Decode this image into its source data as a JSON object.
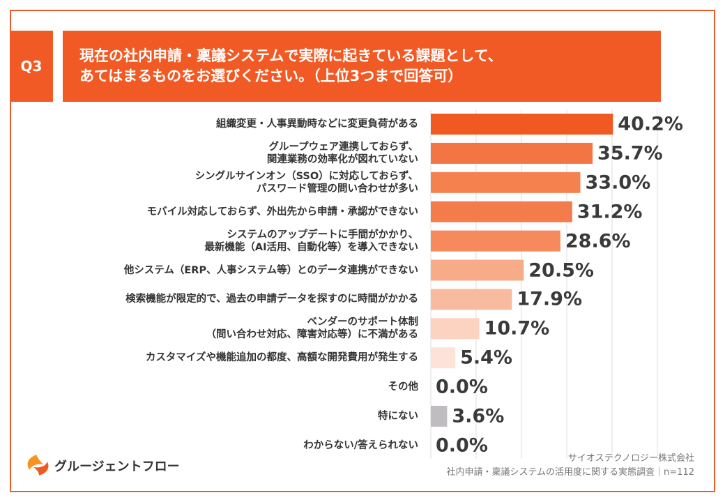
{
  "chart_data": {
    "type": "hbar",
    "question_label": "Q3",
    "title": "現在の社内申請・稟議システムで実際に起きている課題として、\nあてはまるものをお選びください。（上位3つまで回答可）",
    "categories": [
      "組織変更・人事異動時などに変更負荷がある",
      "グループウェア連携しておらず、\n関連業務の効率化が図れていない",
      "シングルサインオン（SSO）に対応しておらず、\nパスワード管理の問い合わせが多い",
      "モバイル対応しておらず、外出先から申請・承認ができない",
      "システムのアップデートに手間がかかり、\n最新機能（AI活用、自動化等）を導入できない",
      "他システム（ERP、人事システム等）とのデータ連携ができない",
      "検索機能が限定的で、過去の申請データを探すのに時間がかかる",
      "ベンダーのサポート体制\n（問い合わせ対応、障害対応等）に不満がある",
      "カスタマイズや機能追加の都度、高額な開発費用が発生する",
      "その他",
      "特にない",
      "わからない/答えられない"
    ],
    "values": [
      40.2,
      35.7,
      33.0,
      31.2,
      28.6,
      20.5,
      17.9,
      10.7,
      5.4,
      0.0,
      3.6,
      0.0
    ],
    "value_labels": [
      "40.2%",
      "35.7%",
      "33.0%",
      "31.2%",
      "28.6%",
      "20.5%",
      "17.9%",
      "10.7%",
      "5.4%",
      "0.0%",
      "3.6%",
      "0.0%"
    ],
    "colors": [
      "#f05a22",
      "#f37543",
      "#f5814f",
      "#f47c4c",
      "#f68a5c",
      "#f8ab89",
      "#f9bb9f",
      "#fcd2c1",
      "#fde2d7",
      "#fde2d7",
      "#bfbdbf",
      "#bfbdbf"
    ],
    "xlim": [
      0,
      50
    ],
    "xticks": [
      0,
      10,
      20,
      30,
      40,
      50
    ],
    "grid": true,
    "source": [
      "サイオステクノロジー株式会社",
      "社内申請・稟議システムの活用度に関する実態調査｜n=112"
    ],
    "brand": "グルージェントフロー"
  }
}
